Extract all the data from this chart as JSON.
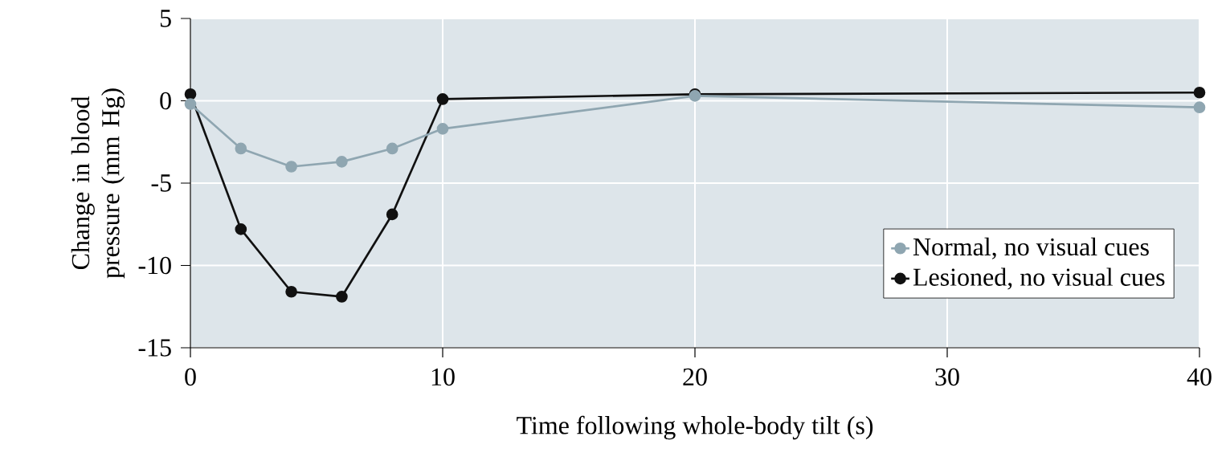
{
  "chart_data": {
    "type": "line",
    "xlabel": "Time following whole-body tilt (s)",
    "ylabel": "Change in blood pressure (mm Hg)",
    "x": [
      0,
      2,
      4,
      6,
      8,
      10,
      20,
      40
    ],
    "series": [
      {
        "name": "Normal, no visual cues",
        "color": "#8fa6b1",
        "values": [
          -0.2,
          -2.9,
          -4.0,
          -3.7,
          -2.9,
          -1.7,
          0.3,
          -0.4
        ]
      },
      {
        "name": "Lesioned, no visual cues",
        "color": "#111111",
        "values": [
          0.4,
          -7.8,
          -11.6,
          -11.9,
          -6.9,
          0.1,
          0.4,
          0.5
        ]
      }
    ],
    "xlim": [
      0,
      40
    ],
    "xticks": [
      0,
      10,
      20,
      30,
      40
    ],
    "ylim": [
      -15,
      5
    ],
    "yticks": [
      -15,
      -10,
      -5,
      0,
      5
    ],
    "grid": true,
    "legend": "bottom right",
    "marker": "circle",
    "line_style": "solid"
  }
}
